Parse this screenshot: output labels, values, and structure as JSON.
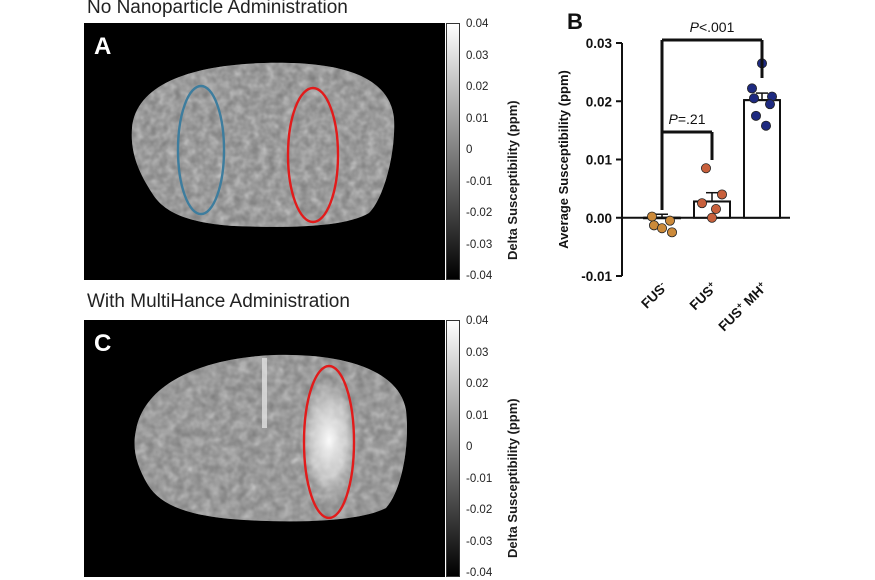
{
  "panel_a": {
    "title": "No Nanoparticle Administration",
    "letter": "A",
    "colorbar": {
      "label": "Delta Susceptibility (ppm)",
      "ticks": [
        "0.04",
        "0.03",
        "0.02",
        "0.01",
        "0",
        "-0.01",
        "-0.02",
        "-0.03",
        "-0.04"
      ]
    },
    "roi_colors": {
      "left": "#3d7d9e",
      "right": "#e21b1b"
    }
  },
  "panel_c": {
    "title": "With MultiHance Administration",
    "letter": "C",
    "colorbar": {
      "label": "Delta Susceptibility (ppm)",
      "ticks": [
        "0.04",
        "0.03",
        "0.02",
        "0.01",
        "0",
        "-0.01",
        "-0.02",
        "-0.03",
        "-0.04"
      ]
    },
    "roi_colors": {
      "right": "#e21b1b"
    }
  },
  "chart_data": {
    "type": "bar",
    "panel_letter": "B",
    "ylabel": "Average Susceptibility (ppm)",
    "ylim": [
      -0.01,
      0.03
    ],
    "yticks": [
      "0.03",
      "0.02",
      "0.01",
      "0.00",
      "-0.01"
    ],
    "categories": [
      {
        "main": "FUS",
        "sup": "-",
        "sup2": "",
        "mid": ""
      },
      {
        "main": "FUS",
        "sup": "+",
        "sup2": "",
        "mid": ""
      },
      {
        "main": "FUS",
        "sup": "+",
        "mid": " MH",
        "sup2": "+"
      }
    ],
    "means": [
      0.0,
      0.0028,
      0.0202
    ],
    "sem": [
      0.0006,
      0.0015,
      0.0012
    ],
    "points": [
      [
        0.0002,
        -0.0005,
        -0.0013,
        -0.0018,
        -0.0025
      ],
      [
        0.0085,
        0.004,
        0.0025,
        0.0015,
        0.0
      ],
      [
        0.0265,
        0.0222,
        0.0208,
        0.0205,
        0.0195,
        0.0175,
        0.0158
      ]
    ],
    "point_colors": [
      "#cc8a3a",
      "#c8603c",
      "#1e2a80"
    ],
    "comparisons": [
      {
        "from": 0,
        "to": 1,
        "label_italic": "P",
        "label_rest": "=.21"
      },
      {
        "from": 0,
        "to": 2,
        "label_italic": "P",
        "label_rest": "<.001"
      }
    ]
  }
}
